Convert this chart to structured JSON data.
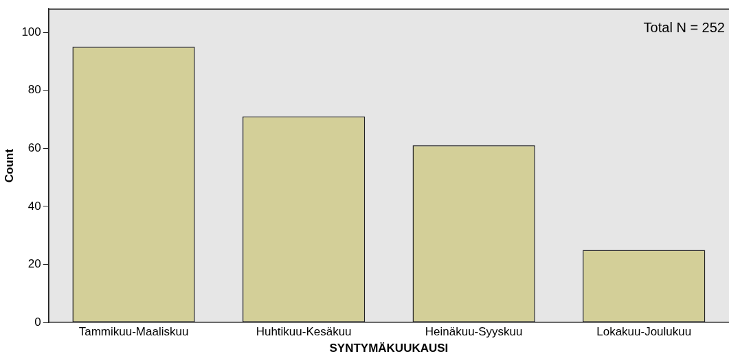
{
  "chart_data": {
    "type": "bar",
    "xlabel": "SYNTYMÄKUUKAUSI",
    "ylabel": "Count",
    "categories": [
      "Tammikuu-Maaliskuu",
      "Huhtikuu-Kesäkuu",
      "Heinäkuu-Syyskuu",
      "Lokakuu-Joulukuu"
    ],
    "values": [
      95,
      71,
      61,
      25
    ],
    "color": "#d3cf98",
    "ylim": [
      0,
      108
    ],
    "yticks": [
      0,
      20,
      40,
      60,
      80,
      100
    ],
    "grid": false,
    "annotations": [
      "Total N = 252"
    ]
  }
}
